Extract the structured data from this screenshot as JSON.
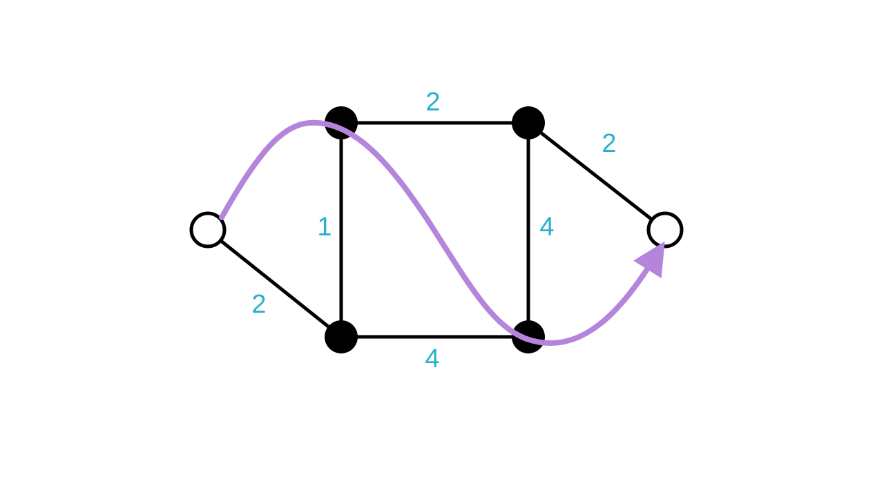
{
  "colors": {
    "edge": "#000000",
    "weight": "#2aaecb",
    "path": "#b585dc",
    "filled_node": "#000000",
    "open_node_fill": "#ffffff"
  },
  "nodes": [
    {
      "id": "s",
      "kind": "open"
    },
    {
      "id": "a",
      "kind": "filled"
    },
    {
      "id": "b",
      "kind": "filled"
    },
    {
      "id": "c",
      "kind": "filled"
    },
    {
      "id": "d",
      "kind": "filled"
    },
    {
      "id": "t",
      "kind": "open"
    }
  ],
  "edges": [
    {
      "from": "s",
      "to": "a",
      "weight": ""
    },
    {
      "from": "s",
      "to": "c",
      "weight": "2"
    },
    {
      "from": "a",
      "to": "b",
      "weight": "2"
    },
    {
      "from": "a",
      "to": "c",
      "weight": "1"
    },
    {
      "from": "b",
      "to": "d",
      "weight": "4"
    },
    {
      "from": "c",
      "to": "d",
      "weight": "4"
    },
    {
      "from": "b",
      "to": "t",
      "weight": "2"
    }
  ],
  "highlighted_path": {
    "from": "s",
    "to": "t",
    "arrow": "arrowhead-icon"
  }
}
